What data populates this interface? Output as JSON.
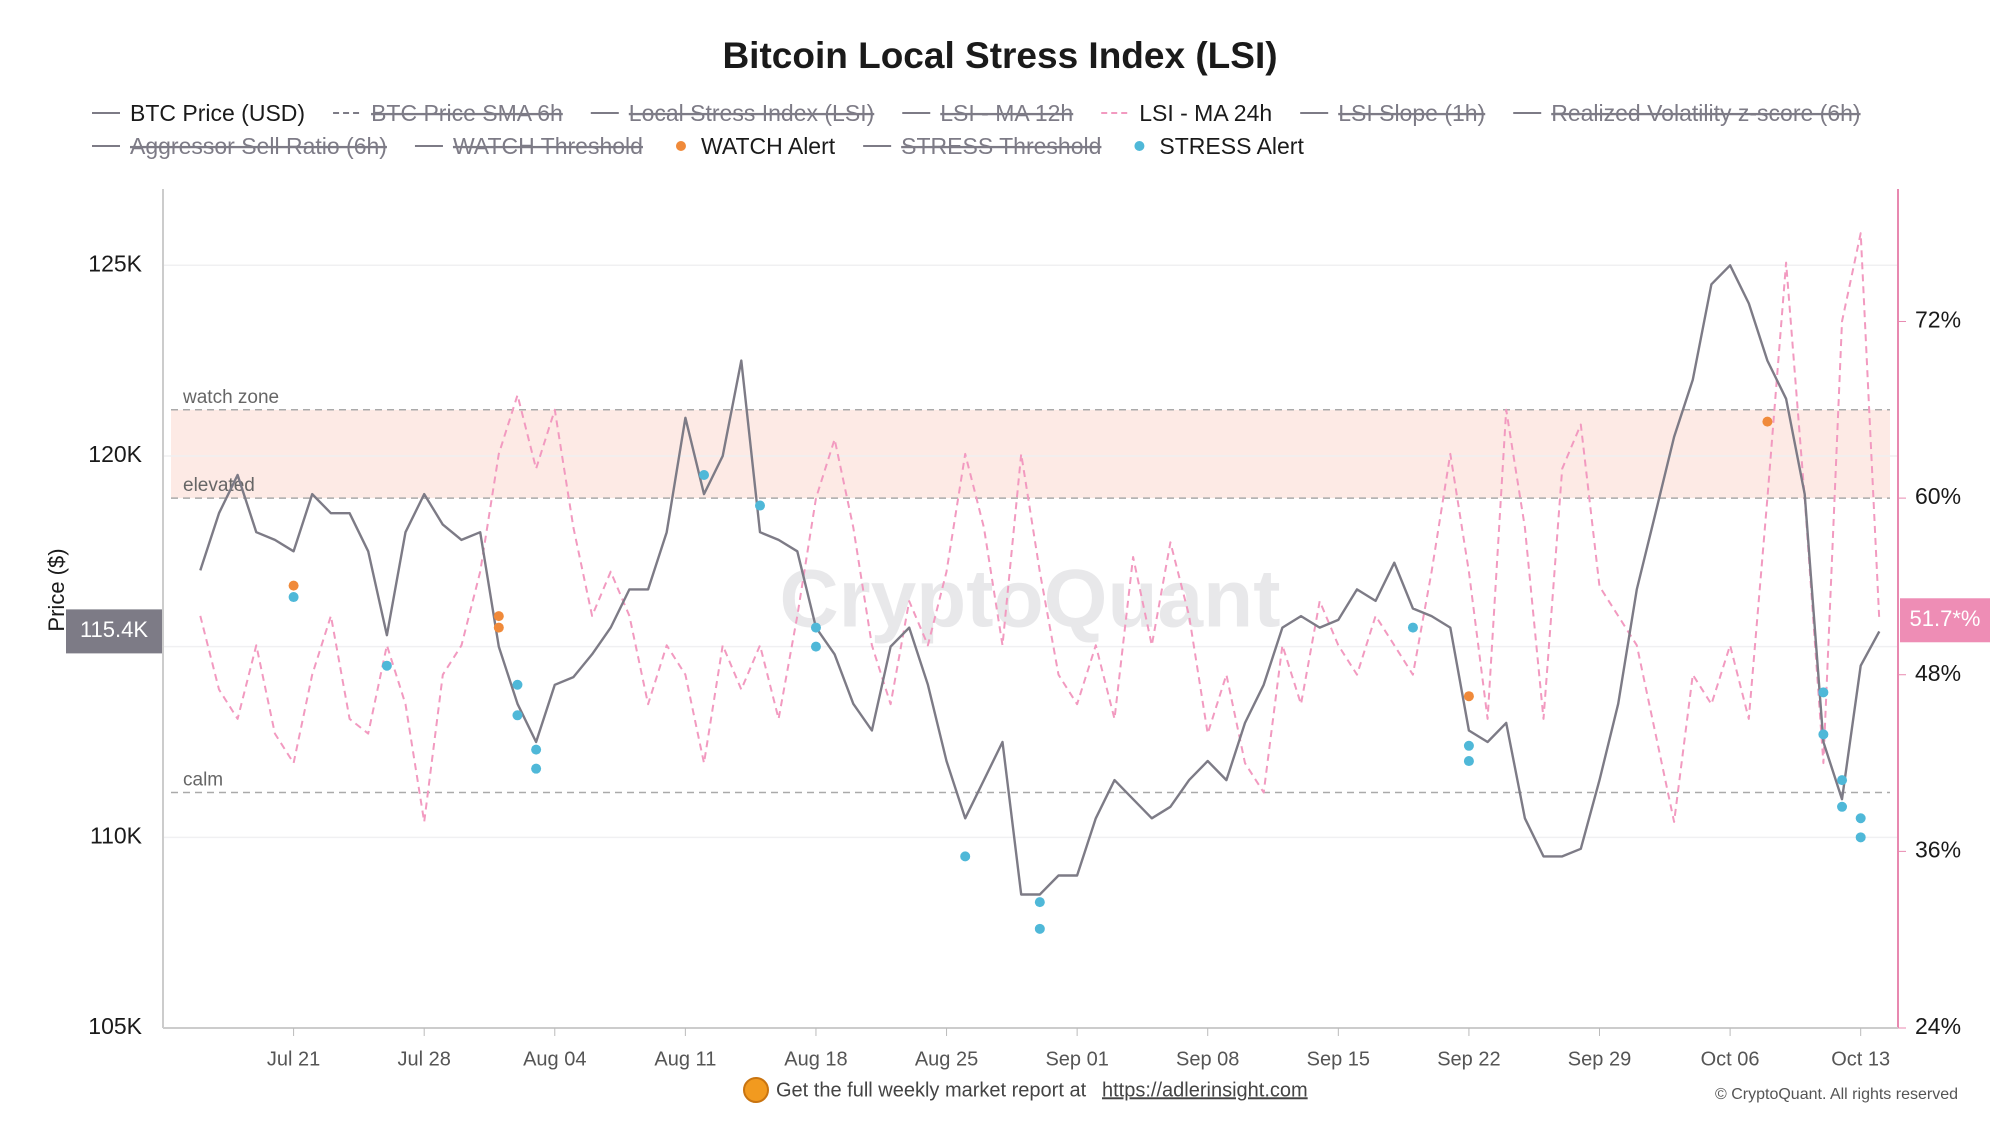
{
  "chart_data": {
    "type": "line",
    "title": "Bitcoin Local Stress Index (LSI)",
    "y_label": "Price ($)",
    "watermark": "CryptoQuant",
    "footer": "Get the full weekly market report at",
    "footer_link": "https://adlerinsight.com",
    "copyright": "© CryptoQuant. All rights reserved",
    "xlim": [
      "Jul 14",
      "Oct 15"
    ],
    "xticks": [
      "Jul 21",
      "Jul 28",
      "Aug 04",
      "Aug 11",
      "Aug 18",
      "Aug 25",
      "Sep 01",
      "Sep 08",
      "Sep 15",
      "Sep 22",
      "Sep 29",
      "Oct 06",
      "Oct 13"
    ],
    "ylim": [
      105000,
      127000
    ],
    "yticks": [
      {
        "value": 105000,
        "label": "105K"
      },
      {
        "value": 110000,
        "label": "110K"
      },
      {
        "value": 115000,
        "label": "115K"
      },
      {
        "value": 120000,
        "label": "120K"
      },
      {
        "value": 125000,
        "label": "125K"
      }
    ],
    "y2lim": [
      24,
      81
    ],
    "y2ticks": [
      {
        "value": 24,
        "label": "24%"
      },
      {
        "value": 36,
        "label": "36%"
      },
      {
        "value": 48,
        "label": "48%"
      },
      {
        "value": 60,
        "label": "60%"
      },
      {
        "value": 72,
        "label": "72%"
      }
    ],
    "grid": true,
    "zones": [
      {
        "label": "watch zone",
        "value": 66
      },
      {
        "label": "elevated",
        "value": 60
      },
      {
        "label": "calm",
        "value": 40
      }
    ],
    "current_price": {
      "value": 115400,
      "label": "115.4K"
    },
    "current_lsi": {
      "value": 51.7,
      "label": "51.7*%"
    },
    "x": [
      "Jul 16",
      "Jul 17",
      "Jul 18",
      "Jul 19",
      "Jul 20",
      "Jul 21",
      "Jul 22",
      "Jul 23",
      "Jul 24",
      "Jul 25",
      "Jul 26",
      "Jul 27",
      "Jul 28",
      "Jul 29",
      "Jul 30",
      "Jul 31",
      "Aug 01",
      "Aug 02",
      "Aug 03",
      "Aug 04",
      "Aug 05",
      "Aug 06",
      "Aug 07",
      "Aug 08",
      "Aug 09",
      "Aug 10",
      "Aug 11",
      "Aug 12",
      "Aug 13",
      "Aug 14",
      "Aug 15",
      "Aug 16",
      "Aug 17",
      "Aug 18",
      "Aug 19",
      "Aug 20",
      "Aug 21",
      "Aug 22",
      "Aug 23",
      "Aug 24",
      "Aug 25",
      "Aug 26",
      "Aug 27",
      "Aug 28",
      "Aug 29",
      "Aug 30",
      "Aug 31",
      "Sep 01",
      "Sep 02",
      "Sep 03",
      "Sep 04",
      "Sep 05",
      "Sep 06",
      "Sep 07",
      "Sep 08",
      "Sep 09",
      "Sep 10",
      "Sep 11",
      "Sep 12",
      "Sep 13",
      "Sep 14",
      "Sep 15",
      "Sep 16",
      "Sep 17",
      "Sep 18",
      "Sep 19",
      "Sep 20",
      "Sep 21",
      "Sep 22",
      "Sep 23",
      "Sep 24",
      "Sep 25",
      "Sep 26",
      "Sep 27",
      "Sep 28",
      "Sep 29",
      "Sep 30",
      "Oct 01",
      "Oct 02",
      "Oct 03",
      "Oct 04",
      "Oct 05",
      "Oct 06",
      "Oct 07",
      "Oct 08",
      "Oct 09",
      "Oct 10",
      "Oct 11",
      "Oct 12",
      "Oct 13",
      "Oct 14"
    ],
    "series": [
      {
        "name": "BTC Price (USD)",
        "color": "#7d7b86",
        "style": "solid",
        "axis": "y",
        "values": [
          117000,
          118500,
          119500,
          118000,
          117800,
          117500,
          119000,
          118500,
          118500,
          117500,
          115300,
          118000,
          119000,
          118200,
          117800,
          118000,
          115000,
          113500,
          112500,
          114000,
          114200,
          114800,
          115500,
          116500,
          116500,
          118000,
          121000,
          119000,
          120000,
          122500,
          118000,
          117800,
          117500,
          115500,
          114800,
          113500,
          112800,
          115000,
          115500,
          114000,
          112000,
          110500,
          111500,
          112500,
          108500,
          108500,
          109000,
          109000,
          110500,
          111500,
          111000,
          110500,
          110800,
          111500,
          112000,
          111500,
          113000,
          114000,
          115500,
          115800,
          115500,
          115700,
          116500,
          116200,
          117200,
          116000,
          115800,
          115500,
          112800,
          112500,
          113000,
          110500,
          109500,
          109500,
          109700,
          111500,
          113500,
          116500,
          118500,
          120500,
          122000,
          124500,
          125000,
          124000,
          122500,
          121500,
          119000,
          112500,
          111000,
          114500,
          115400
        ]
      },
      {
        "name": "BTC Price SMA 6h",
        "color": "#7d7b86",
        "style": "dashed",
        "hidden": true
      },
      {
        "name": "Local Stress Index (LSI)",
        "color": "#7d7b86",
        "style": "solid",
        "hidden": true
      },
      {
        "name": "LSI - MA 12h",
        "color": "#7d7b86",
        "style": "solid",
        "hidden": true
      },
      {
        "name": "LSI - MA 24h",
        "color": "#f29ac0",
        "style": "dashed",
        "axis": "y2",
        "values": [
          52,
          47,
          45,
          50,
          44,
          42,
          48,
          52,
          45,
          44,
          50,
          46,
          38,
          48,
          50,
          55,
          63,
          67,
          62,
          66,
          58,
          52,
          55,
          52,
          46,
          50,
          48,
          42,
          50,
          47,
          50,
          45,
          52,
          60,
          64,
          58,
          50,
          46,
          53,
          50,
          55,
          63,
          58,
          50,
          63,
          55,
          48,
          46,
          50,
          45,
          56,
          50,
          57,
          52,
          44,
          48,
          42,
          40,
          50,
          46,
          53,
          50,
          48,
          52,
          50,
          48,
          55,
          63,
          55,
          45,
          66,
          58,
          45,
          62,
          65,
          54,
          52,
          50,
          44,
          38,
          48,
          46,
          50,
          45,
          60,
          76,
          60,
          42,
          72,
          78,
          51.7
        ]
      },
      {
        "name": "LSI Slope (1h)",
        "color": "#7d7b86",
        "style": "solid",
        "hidden": true
      },
      {
        "name": "Realized Volatility z-score (6h)",
        "color": "#7d7b86",
        "style": "solid",
        "hidden": true
      },
      {
        "name": "Aggressor Sell Ratio (6h)",
        "color": "#7d7b86",
        "style": "solid",
        "hidden": true
      },
      {
        "name": "WATCH Threshold",
        "color": "#7d7b86",
        "style": "solid",
        "hidden": true
      },
      {
        "name": "WATCH Alert",
        "color": "#f08a3a",
        "style": "dot",
        "axis": "y",
        "x": [
          "Jul 21",
          "Aug 01",
          "Aug 01",
          "Sep 22",
          "Oct 08"
        ],
        "values": [
          116600,
          115800,
          115500,
          113700,
          120900
        ]
      },
      {
        "name": "STRESS Threshold",
        "color": "#7d7b86",
        "style": "solid",
        "hidden": true
      },
      {
        "name": "STRESS Alert",
        "color": "#4fb8d8",
        "style": "dot",
        "axis": "y",
        "x": [
          "Jul 21",
          "Jul 26",
          "Aug 02",
          "Aug 02",
          "Aug 03",
          "Aug 03",
          "Aug 12",
          "Aug 15",
          "Aug 18",
          "Aug 18",
          "Aug 26",
          "Aug 30",
          "Aug 30",
          "Sep 19",
          "Sep 22",
          "Sep 22",
          "Oct 11",
          "Oct 11",
          "Oct 12",
          "Oct 12",
          "Oct 13",
          "Oct 13"
        ],
        "values": [
          116300,
          114500,
          114000,
          113200,
          112300,
          111800,
          119500,
          118700,
          115500,
          115000,
          109500,
          108300,
          107600,
          115500,
          112400,
          112000,
          113800,
          112700,
          111500,
          110800,
          110500,
          110000
        ]
      }
    ]
  }
}
